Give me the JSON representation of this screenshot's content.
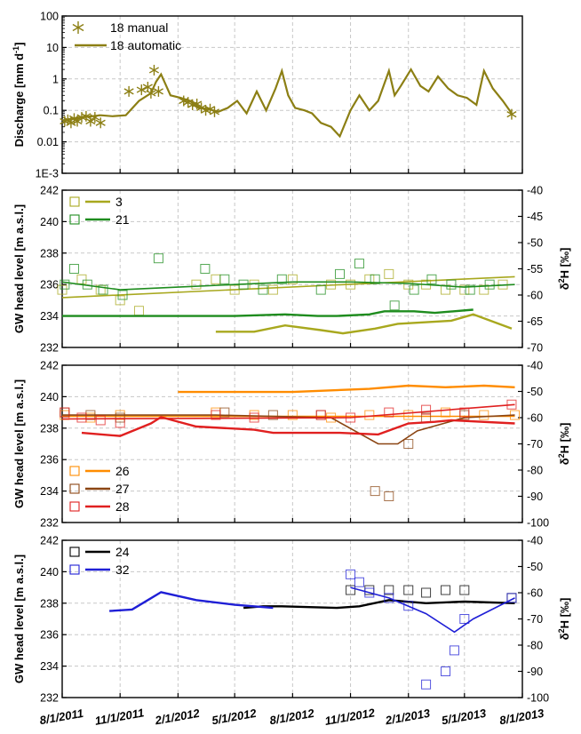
{
  "figure": {
    "x_ticks": [
      "8/1/2011",
      "11/1/2011",
      "2/1/2012",
      "5/1/2012",
      "8/1/2012",
      "11/1/2012",
      "2/1/2013",
      "5/1/2013",
      "8/1/2013"
    ]
  },
  "chart_data": [
    {
      "type": "line",
      "panel": "discharge",
      "ylabel_main": "Discharge [mm d",
      "ylabel_sup": "-1",
      "ylabel_end": "]",
      "yscale": "log",
      "ylim": [
        0.001,
        100
      ],
      "y_tick_labels": [
        "1E-3",
        "0.01",
        "0.1",
        "1",
        "10",
        "100"
      ],
      "grid": true,
      "legend": "top-left",
      "series": [
        {
          "name": "18 manual",
          "style": "asterisk",
          "color": "#8c7f14",
          "x": [
            "2011-08-05",
            "2011-08-10",
            "2011-08-15",
            "2011-08-20",
            "2011-08-25",
            "2011-09-01",
            "2011-09-08",
            "2011-09-15",
            "2011-09-22",
            "2011-10-01",
            "2011-11-15",
            "2011-12-05",
            "2011-12-15",
            "2011-12-20",
            "2011-12-25",
            "2012-01-01",
            "2012-02-10",
            "2012-02-17",
            "2012-02-24",
            "2012-03-02",
            "2012-03-09",
            "2012-03-16",
            "2012-03-23",
            "2012-03-30",
            "2013-07-15"
          ],
          "y": [
            0.045,
            0.05,
            0.04,
            0.055,
            0.045,
            0.06,
            0.065,
            0.045,
            0.06,
            0.04,
            0.4,
            0.45,
            0.55,
            0.35,
            1.9,
            0.4,
            0.2,
            0.18,
            0.15,
            0.16,
            0.12,
            0.1,
            0.11,
            0.09,
            0.075
          ]
        },
        {
          "name": "18 automatic",
          "style": "line",
          "color": "#8c7f14",
          "x": [
            "2011-08-05",
            "2011-09-01",
            "2011-10-01",
            "2011-10-20",
            "2011-11-10",
            "2011-12-01",
            "2011-12-20",
            "2011-12-28",
            "2012-01-05",
            "2012-01-20",
            "2012-02-05",
            "2012-02-20",
            "2012-03-05",
            "2012-03-20",
            "2012-04-05",
            "2012-04-20",
            "2012-05-05",
            "2012-05-20",
            "2012-06-05",
            "2012-06-20",
            "2012-07-05",
            "2012-07-15",
            "2012-07-25",
            "2012-08-05",
            "2012-08-20",
            "2012-09-01",
            "2012-09-15",
            "2012-10-01",
            "2012-10-15",
            "2012-11-01",
            "2012-11-15",
            "2012-12-01",
            "2012-12-15",
            "2013-01-01",
            "2013-01-10",
            "2013-01-20",
            "2013-02-05",
            "2013-02-20",
            "2013-03-05",
            "2013-03-20",
            "2013-04-05",
            "2013-04-20",
            "2013-05-05",
            "2013-05-20",
            "2013-06-01",
            "2013-06-15",
            "2013-07-01",
            "2013-07-15"
          ],
          "y": [
            0.05,
            0.06,
            0.07,
            0.065,
            0.07,
            0.2,
            0.35,
            0.8,
            1.4,
            0.3,
            0.25,
            0.2,
            0.12,
            0.11,
            0.09,
            0.12,
            0.2,
            0.08,
            0.4,
            0.1,
            0.5,
            1.8,
            0.3,
            0.12,
            0.1,
            0.08,
            0.04,
            0.03,
            0.015,
            0.1,
            0.3,
            0.1,
            0.2,
            1.8,
            0.3,
            0.6,
            2.0,
            0.6,
            0.4,
            1.2,
            0.5,
            0.3,
            0.25,
            0.15,
            1.8,
            0.5,
            0.2,
            0.08
          ]
        }
      ]
    },
    {
      "type": "scatter",
      "panel": "gw-1",
      "ylabel": "GW head level [m a.s.l.]",
      "ylim": [
        232,
        242
      ],
      "y_tick_labels": [
        "232",
        "234",
        "236",
        "238",
        "240",
        "242"
      ],
      "y2label_pre": "δ",
      "y2label_sup": "2",
      "y2label_post": "H [‰]",
      "y2lim": [
        -70,
        -40
      ],
      "y2_tick_labels": [
        "-70",
        "-65",
        "-60",
        "-55",
        "-50",
        "-45",
        "-40"
      ],
      "grid": true,
      "legend": "top-left",
      "series": [
        {
          "name": "3",
          "color": "#a8a81e",
          "head_x": [
            "2012-04-01",
            "2012-06-01",
            "2012-07-20",
            "2012-09-15",
            "2012-10-20",
            "2012-12-10",
            "2013-01-15",
            "2013-04-10",
            "2013-05-15",
            "2013-07-15"
          ],
          "head_y": [
            233.0,
            233.0,
            233.4,
            233.1,
            232.9,
            233.2,
            233.5,
            233.7,
            234.1,
            233.2
          ],
          "isotope_x": [
            "2011-08-01",
            "2011-09-01",
            "2011-10-01",
            "2011-11-01",
            "2011-12-01",
            "2012-03-01",
            "2012-04-01",
            "2012-05-01",
            "2012-06-01",
            "2012-07-01",
            "2012-08-01",
            "2012-10-01",
            "2012-11-01",
            "2012-12-01",
            "2013-01-01",
            "2013-02-01",
            "2013-03-01",
            "2013-04-01",
            "2013-05-01",
            "2013-06-01",
            "2013-07-01"
          ],
          "isotope_y": [
            -59,
            -57,
            -59,
            -61,
            -63,
            -58,
            -57,
            -59,
            -58,
            -59,
            -57,
            -58,
            -58,
            -57,
            -56,
            -58,
            -58,
            -59,
            -59,
            -59,
            -58
          ],
          "mean_line_x": [
            "2011-08-01",
            "2013-07-20"
          ],
          "mean_line_y": [
            -60.5,
            -56.5
          ]
        },
        {
          "name": "21",
          "color": "#1e8c1e",
          "head_x": [
            "2011-08-01",
            "2011-09-01",
            "2011-10-01",
            "2012-05-01",
            "2012-07-20",
            "2012-09-10",
            "2012-10-10",
            "2012-12-01",
            "2012-12-25",
            "2013-02-10",
            "2013-03-15",
            "2013-05-15"
          ],
          "head_y": [
            234.0,
            234.0,
            234.0,
            234.0,
            234.1,
            234.0,
            234.0,
            234.1,
            234.3,
            234.3,
            234.2,
            234.4
          ],
          "isotope_x": [
            "2011-08-05",
            "2011-08-20",
            "2011-09-10",
            "2011-10-05",
            "2011-11-05",
            "2012-01-01",
            "2012-03-15",
            "2012-04-15",
            "2012-05-15",
            "2012-06-15",
            "2012-07-15",
            "2012-09-15",
            "2012-10-15",
            "2012-11-15",
            "2012-12-10",
            "2013-01-10",
            "2013-02-10",
            "2013-03-10",
            "2013-04-10",
            "2013-05-10",
            "2013-06-10"
          ],
          "isotope_y": [
            -58,
            -55,
            -58,
            -59,
            -60,
            -53,
            -55,
            -57,
            -58,
            -59,
            -57,
            -59,
            -56,
            -54,
            -57,
            -62,
            -59,
            -57,
            -58,
            -59,
            -58
          ],
          "mean_line_x": [
            "2011-08-01",
            "2011-11-01",
            "2012-02-01",
            "2012-05-01",
            "2012-08-01",
            "2012-11-01",
            "2013-02-01",
            "2013-05-01",
            "2013-07-20"
          ],
          "mean_line_y": [
            -57.5,
            -59.0,
            -58.5,
            -58.0,
            -57.5,
            -57.5,
            -57.8,
            -58.5,
            -58.0
          ]
        }
      ]
    },
    {
      "type": "scatter",
      "panel": "gw-2",
      "ylabel": "GW head level [m a.s.l.]",
      "ylim": [
        232,
        242
      ],
      "y_tick_labels": [
        "232",
        "234",
        "236",
        "238",
        "240",
        "242"
      ],
      "y2label_pre": "δ",
      "y2label_sup": "2",
      "y2label_post": "H [‰]",
      "y2lim": [
        -100,
        -40
      ],
      "y2_tick_labels": [
        "-100",
        "-90",
        "-80",
        "-70",
        "-60",
        "-50",
        "-40"
      ],
      "grid": true,
      "legend": "bottom-left",
      "series": [
        {
          "name": "26",
          "color": "#ff8c00",
          "head_x": [
            "2012-02-01",
            "2012-04-01",
            "2012-06-01",
            "2012-08-01",
            "2012-10-01",
            "2012-12-01",
            "2013-02-01",
            "2013-04-01",
            "2013-06-01",
            "2013-07-20"
          ],
          "head_y": [
            240.3,
            240.3,
            240.3,
            240.3,
            240.4,
            240.5,
            240.7,
            240.6,
            240.7,
            240.6
          ],
          "isotope_x": [
            "2011-08-05",
            "2011-09-15",
            "2011-11-01",
            "2012-04-01",
            "2012-06-01",
            "2012-08-01",
            "2012-10-01",
            "2012-12-01",
            "2013-02-01",
            "2013-04-01",
            "2013-06-01",
            "2013-07-20"
          ],
          "isotope_y": [
            -59,
            -60,
            -59,
            -58,
            -59,
            -59,
            -60,
            -59,
            -59,
            -58,
            -59,
            -59
          ],
          "mean_line_x": [
            "2011-08-01",
            "2013-07-20"
          ],
          "mean_line_y": [
            -59.5,
            -59.5
          ]
        },
        {
          "name": "27",
          "color": "#8b4513",
          "head_x": [],
          "head_y": [],
          "isotope_x": [
            "2011-08-05",
            "2011-09-15",
            "2011-11-01",
            "2012-04-15",
            "2012-07-01",
            "2012-09-15",
            "2012-12-10",
            "2013-01-01",
            "2013-02-01",
            "2013-03-01",
            "2013-05-01"
          ],
          "isotope_y": [
            -58,
            -59,
            -60,
            -58,
            -59,
            -59,
            -88,
            -90,
            -70,
            -60,
            -59
          ],
          "mean_line_x": [
            "2011-08-01",
            "2012-04-01",
            "2012-10-01",
            "2012-12-15",
            "2013-01-15",
            "2013-02-15",
            "2013-05-01",
            "2013-07-20"
          ],
          "mean_line_y": [
            -59,
            -59,
            -60,
            -70,
            -70,
            -65,
            -60,
            -59
          ]
        },
        {
          "name": "28",
          "color": "#e02020",
          "head_x": [
            "2011-09-01",
            "2011-11-01",
            "2011-12-20",
            "2012-01-05",
            "2012-03-01",
            "2012-06-01",
            "2012-07-01",
            "2012-10-15",
            "2012-12-15",
            "2013-02-01",
            "2013-03-15",
            "2013-04-10",
            "2013-07-20"
          ],
          "head_y": [
            237.7,
            237.5,
            238.3,
            238.7,
            238.1,
            237.9,
            237.7,
            237.7,
            237.6,
            238.3,
            238.4,
            238.5,
            238.3
          ],
          "isotope_x": [
            "2011-08-05",
            "2011-09-01",
            "2011-10-01",
            "2011-11-01",
            "2012-04-01",
            "2012-06-01",
            "2012-09-15",
            "2012-11-01",
            "2013-01-01",
            "2013-03-01",
            "2013-05-01",
            "2013-07-15"
          ],
          "isotope_y": [
            -58,
            -60,
            -61,
            -62,
            -59,
            -60,
            -59,
            -60,
            -58,
            -57,
            -58,
            -55
          ],
          "mean_line_x": [
            "2011-08-01",
            "2012-11-01",
            "2013-07-20"
          ],
          "mean_line_y": [
            -60.5,
            -60.0,
            -55.0
          ]
        }
      ]
    },
    {
      "type": "scatter",
      "panel": "gw-3",
      "ylabel": "GW head level [m a.s.l.]",
      "ylim": [
        232,
        242
      ],
      "y_tick_labels": [
        "232",
        "234",
        "236",
        "238",
        "240",
        "242"
      ],
      "y2label_pre": "δ",
      "y2label_sup": "2",
      "y2label_post": "H [‰]",
      "y2lim": [
        -100,
        -40
      ],
      "y2_tick_labels": [
        "-100",
        "-90",
        "-80",
        "-70",
        "-60",
        "-50",
        "-40"
      ],
      "grid": true,
      "legend": "top-left",
      "series": [
        {
          "name": "24",
          "color": "#000000",
          "head_x": [
            "2012-05-15",
            "2012-06-15",
            "2012-07-15",
            "2012-10-10",
            "2012-11-15",
            "2013-01-01",
            "2013-03-01",
            "2013-05-01",
            "2013-07-20"
          ],
          "head_y": [
            237.7,
            237.8,
            237.8,
            237.7,
            237.8,
            238.2,
            238.0,
            238.1,
            238.0
          ],
          "isotope_x": [
            "2012-11-01",
            "2012-12-01",
            "2013-01-01",
            "2013-02-01",
            "2013-03-01",
            "2013-04-01",
            "2013-05-01",
            "2013-07-15"
          ],
          "isotope_y": [
            -59,
            -59,
            -59,
            -59,
            -60,
            -59,
            -59,
            -62
          ],
          "mean_line_x": [],
          "mean_line_y": []
        },
        {
          "name": "32",
          "color": "#1f1fd6",
          "head_x": [
            "2011-10-15",
            "2011-11-20",
            "2011-12-15",
            "2012-01-05",
            "2012-03-01",
            "2012-05-01",
            "2012-07-01"
          ],
          "head_y": [
            237.5,
            237.6,
            238.2,
            238.7,
            238.2,
            237.9,
            237.7
          ],
          "isotope_x": [
            "2012-11-01",
            "2012-11-15",
            "2012-12-01",
            "2013-01-01",
            "2013-02-01",
            "2013-03-01",
            "2013-04-01",
            "2013-04-15",
            "2013-05-01",
            "2013-07-15"
          ],
          "isotope_y": [
            -53,
            -56,
            -60,
            -62,
            -65,
            -95,
            -90,
            -82,
            -70,
            -62
          ],
          "mean_line_x": [
            "2012-11-01",
            "2013-01-01",
            "2013-03-01",
            "2013-04-15",
            "2013-05-15",
            "2013-07-20"
          ],
          "mean_line_y": [
            -58,
            -62,
            -68,
            -75,
            -70,
            -62
          ]
        }
      ]
    }
  ]
}
